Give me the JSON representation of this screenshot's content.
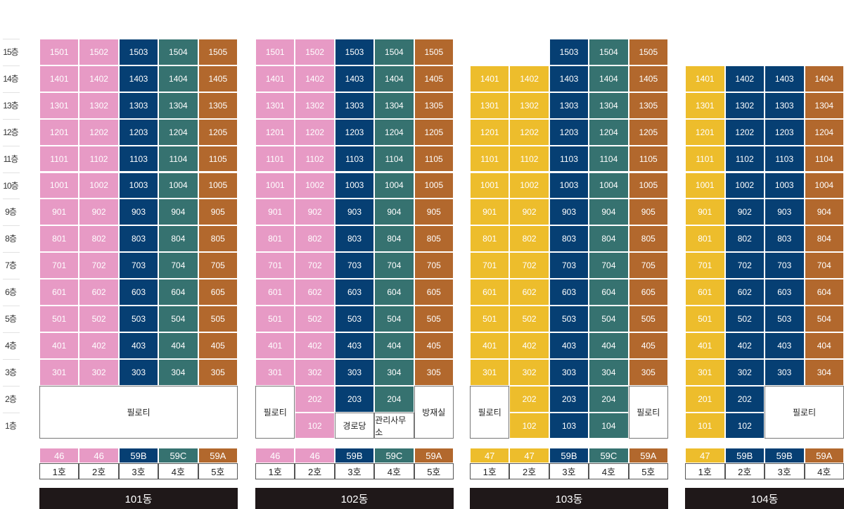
{
  "colors": {
    "pink": "#e79ac5",
    "navy": "#063f73",
    "teal": "#367270",
    "orange": "#b2682d",
    "yellow": "#edbd2c"
  },
  "floor_labels": [
    "15층",
    "14층",
    "13층",
    "12층",
    "11층",
    "10층",
    "9층",
    "8층",
    "7층",
    "6층",
    "5층",
    "4층",
    "3층",
    "2층",
    "1층"
  ],
  "buildings": [
    {
      "name": "101동",
      "top_floor": 15,
      "column_colors": [
        "pink",
        "pink",
        "navy",
        "teal",
        "orange"
      ],
      "types": [
        "46",
        "46",
        "59B",
        "59C",
        "59A"
      ],
      "hos": [
        "1호",
        "2호",
        "3호",
        "4호",
        "5호"
      ],
      "specials": [
        {
          "text": "필로티",
          "col": 0,
          "row": 0,
          "colspan": 5,
          "rowspan": 2
        }
      ],
      "low_cells": []
    },
    {
      "name": "102동",
      "top_floor": 15,
      "column_colors": [
        "pink",
        "pink",
        "navy",
        "teal",
        "orange"
      ],
      "types": [
        "46",
        "46",
        "59B",
        "59C",
        "59A"
      ],
      "hos": [
        "1호",
        "2호",
        "3호",
        "4호",
        "5호"
      ],
      "specials": [
        {
          "text": "필로티",
          "col": 0,
          "row": 0,
          "colspan": 1,
          "rowspan": 2
        },
        {
          "text": "경로당",
          "col": 2,
          "row": 1,
          "colspan": 1,
          "rowspan": 1
        },
        {
          "text": "관리사무소",
          "col": 3,
          "row": 1,
          "colspan": 1,
          "rowspan": 1
        },
        {
          "text": "방재실",
          "col": 4,
          "row": 0,
          "colspan": 1,
          "rowspan": 2
        }
      ],
      "low_cells": [
        {
          "text": "202",
          "col": 1,
          "row": 0
        },
        {
          "text": "102",
          "col": 1,
          "row": 1
        },
        {
          "text": "203",
          "col": 2,
          "row": 0
        },
        {
          "text": "204",
          "col": 3,
          "row": 0
        }
      ]
    },
    {
      "name": "103동",
      "top_floor": 15,
      "top_floor_cols": [
        2,
        3,
        4
      ],
      "column_colors": [
        "yellow",
        "yellow",
        "navy",
        "teal",
        "orange"
      ],
      "types": [
        "47",
        "47",
        "59B",
        "59C",
        "59A"
      ],
      "hos": [
        "1호",
        "2호",
        "3호",
        "4호",
        "5호"
      ],
      "specials": [
        {
          "text": "필로티",
          "col": 0,
          "row": 0,
          "colspan": 1,
          "rowspan": 2
        },
        {
          "text": "필로티",
          "col": 4,
          "row": 0,
          "colspan": 1,
          "rowspan": 2
        }
      ],
      "low_cells": [
        {
          "text": "202",
          "col": 1,
          "row": 0
        },
        {
          "text": "102",
          "col": 1,
          "row": 1
        },
        {
          "text": "203",
          "col": 2,
          "row": 0
        },
        {
          "text": "103",
          "col": 2,
          "row": 1
        },
        {
          "text": "204",
          "col": 3,
          "row": 0
        },
        {
          "text": "104",
          "col": 3,
          "row": 1
        }
      ]
    },
    {
      "name": "104동",
      "top_floor": 14,
      "column_colors": [
        "yellow",
        "navy",
        "navy",
        "orange"
      ],
      "types": [
        "47",
        "59B",
        "59B",
        "59A"
      ],
      "hos": [
        "1호",
        "2호",
        "3호",
        "4호"
      ],
      "specials": [
        {
          "text": "필로티",
          "col": 2,
          "row": 0,
          "colspan": 2,
          "rowspan": 2
        }
      ],
      "low_cells": [
        {
          "text": "201",
          "col": 0,
          "row": 0
        },
        {
          "text": "101",
          "col": 0,
          "row": 1
        },
        {
          "text": "202",
          "col": 1,
          "row": 0
        },
        {
          "text": "102",
          "col": 1,
          "row": 1
        }
      ]
    }
  ]
}
